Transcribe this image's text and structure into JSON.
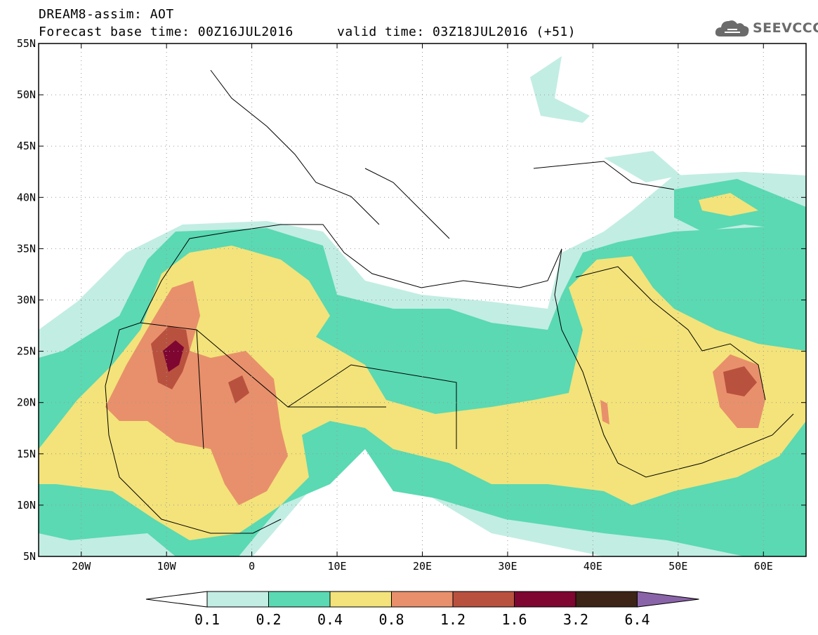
{
  "header": {
    "title": "DREAM8-assim: AOT",
    "base_time": "Forecast base time: 00Z16JUL2016",
    "valid_time": "valid time: 03Z18JUL2016 (+51)"
  },
  "logo": {
    "text": "SEEVCCC",
    "icon": "cloud-icon"
  },
  "map_data": {
    "lon_range": [
      -25,
      65
    ],
    "lat_range": [
      5,
      55
    ],
    "lon_ticks": [
      {
        "value": -20,
        "label": "20W"
      },
      {
        "value": -10,
        "label": "10W"
      },
      {
        "value": 0,
        "label": "0"
      },
      {
        "value": 10,
        "label": "10E"
      },
      {
        "value": 20,
        "label": "20E"
      },
      {
        "value": 30,
        "label": "30E"
      },
      {
        "value": 40,
        "label": "40E"
      },
      {
        "value": 50,
        "label": "50E"
      },
      {
        "value": 60,
        "label": "60E"
      }
    ],
    "lat_ticks": [
      {
        "value": 55,
        "label": "55N"
      },
      {
        "value": 50,
        "label": "50N"
      },
      {
        "value": 45,
        "label": "45N"
      },
      {
        "value": 40,
        "label": "40N"
      },
      {
        "value": 35,
        "label": "35N"
      },
      {
        "value": 30,
        "label": "30N"
      },
      {
        "value": 25,
        "label": "25N"
      },
      {
        "value": 20,
        "label": "20N"
      },
      {
        "value": 15,
        "label": "15N"
      },
      {
        "value": 10,
        "label": "10N"
      },
      {
        "value": 5,
        "label": "5N"
      }
    ],
    "grid": true
  },
  "colorbar": {
    "bins": [
      {
        "color": "#c2ede3"
      },
      {
        "color": "#5ad9b2"
      },
      {
        "color": "#f3e37a"
      },
      {
        "color": "#e8906b"
      },
      {
        "color": "#b9513f"
      },
      {
        "color": "#7e0630"
      },
      {
        "color": "#3c2416"
      }
    ],
    "under_color": "#ffffff",
    "over_color": "#8a64a8",
    "labels": [
      "0.1",
      "0.2",
      "0.4",
      "0.8",
      "1.2",
      "1.6",
      "3.2",
      "6.4"
    ]
  }
}
